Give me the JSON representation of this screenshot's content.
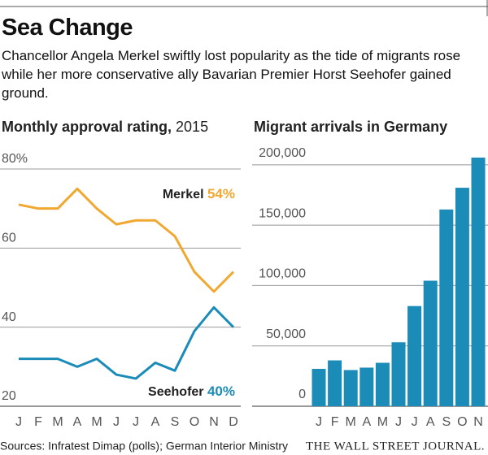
{
  "title": "Sea Change",
  "subtitle": "Chancellor Angela Merkel swiftly lost popularity as the tide of migrants rose while her more conservative ally Bavarian Premier Horst Seehofer gained ground.",
  "chart_data": [
    {
      "type": "line",
      "title": "Monthly approval rating,",
      "subtitle": "2015",
      "categories": [
        "J",
        "F",
        "M",
        "A",
        "M",
        "J",
        "J",
        "A",
        "S",
        "O",
        "N",
        "D"
      ],
      "series": [
        {
          "name": "Merkel",
          "color": "#f0a830",
          "values": [
            71,
            70,
            70,
            75,
            70,
            66,
            67,
            67,
            63,
            54,
            49,
            54
          ],
          "value_labels": [
            null,
            null,
            null,
            null,
            null,
            null,
            null,
            null,
            null,
            null,
            null,
            "54%"
          ]
        },
        {
          "name": "Seehofer",
          "color": "#1b8cb8",
          "values": [
            32,
            32,
            32,
            30,
            32,
            28,
            27,
            31,
            29,
            39,
            45,
            40
          ],
          "value_labels": [
            null,
            null,
            null,
            null,
            null,
            null,
            null,
            null,
            null,
            null,
            null,
            "40%"
          ]
        }
      ],
      "ylim": [
        20,
        80
      ],
      "yticks": [
        20,
        40,
        60,
        {
          "value": 80,
          "label": "80%"
        }
      ],
      "grid": true
    },
    {
      "type": "bar",
      "title": "Migrant arrivals in Germany",
      "categories": [
        "J",
        "F",
        "M",
        "A",
        "M",
        "J",
        "J",
        "A",
        "S",
        "O",
        "N"
      ],
      "values": [
        31000,
        38000,
        30000,
        32000,
        36000,
        53000,
        83000,
        104000,
        163000,
        181000,
        206000
      ],
      "color": "#1b8cb8",
      "ylim": [
        0,
        210000
      ],
      "yticks": [
        0,
        {
          "value": 50000,
          "label": "50,000"
        },
        {
          "value": 100000,
          "label": "100,000"
        },
        {
          "value": 150000,
          "label": "150,000"
        },
        {
          "value": 200000,
          "label": "200,000"
        }
      ],
      "grid": true
    }
  ],
  "source": "Sources: Infratest Dimap (polls); German Interior Ministry",
  "publisher": "THE WALL STREET JOURNAL."
}
